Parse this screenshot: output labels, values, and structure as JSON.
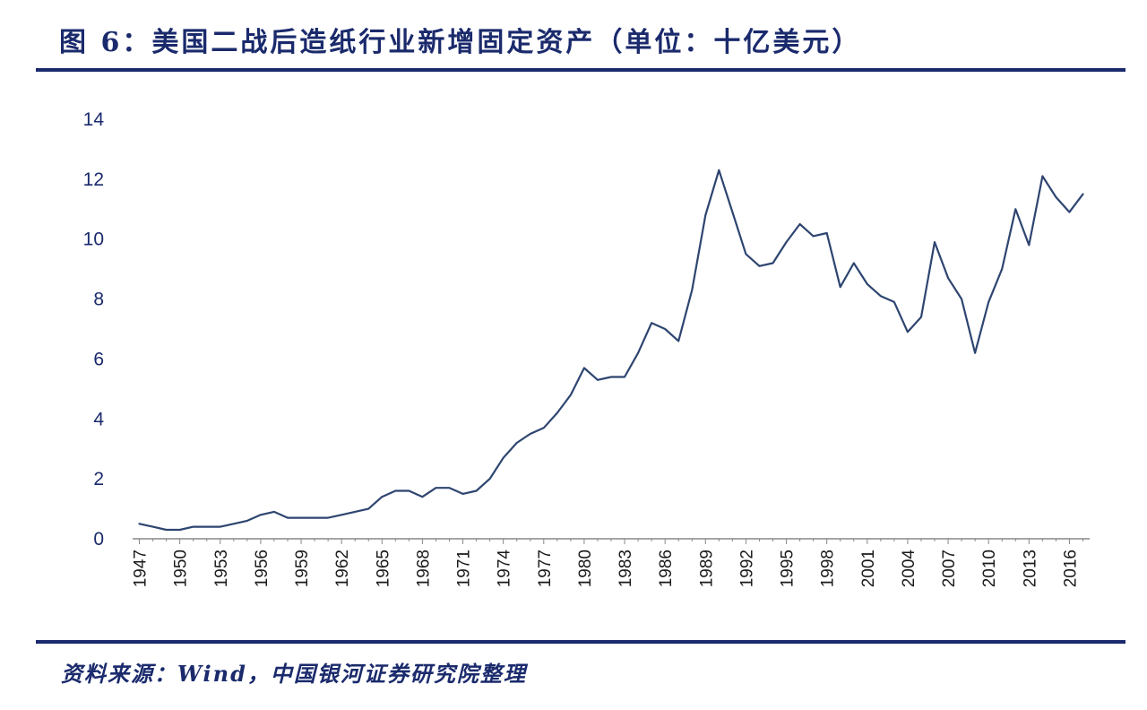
{
  "header": {
    "title": "图 6：美国二战后造纸行业新增固定资产（单位：十亿美元）"
  },
  "footer": {
    "source": "资料来源：Wind，中国银河证券研究院整理"
  },
  "colors": {
    "accent": "#1a2a6c",
    "line": "#2e4570"
  },
  "chart_data": {
    "type": "line",
    "title": "图 6：美国二战后造纸行业新增固定资产（单位：十亿美元）",
    "xlabel": "",
    "ylabel": "",
    "ylim": [
      0,
      14
    ],
    "yticks": [
      "0",
      "2",
      "4",
      "6",
      "8",
      "10",
      "12",
      "14"
    ],
    "xticks": [
      "1947",
      "1950",
      "1953",
      "1956",
      "1959",
      "1962",
      "1965",
      "1968",
      "1971",
      "1974",
      "1977",
      "1980",
      "1983",
      "1986",
      "1989",
      "1992",
      "1995",
      "1998",
      "2001",
      "2004",
      "2007",
      "2010",
      "2013",
      "2016"
    ],
    "grid": false,
    "legend": "none",
    "series": [
      {
        "x": [
          1947,
          1948,
          1949,
          1950,
          1951,
          1952,
          1953,
          1954,
          1955,
          1956,
          1957,
          1958,
          1959,
          1960,
          1961,
          1962,
          1963,
          1964,
          1965,
          1966,
          1967,
          1968,
          1969,
          1970,
          1971,
          1972,
          1973,
          1974,
          1975,
          1976,
          1977,
          1978,
          1979,
          1980,
          1981,
          1982,
          1983,
          1984,
          1985,
          1986,
          1987,
          1988,
          1989,
          1990,
          1991,
          1992,
          1993,
          1994,
          1995,
          1996,
          1997,
          1998,
          1999,
          2000,
          2001,
          2002,
          2003,
          2004,
          2005,
          2006,
          2007,
          2008,
          2009,
          2010,
          2011,
          2012,
          2013,
          2014,
          2015,
          2016,
          2017
        ],
        "values": [
          0.5,
          0.4,
          0.3,
          0.3,
          0.4,
          0.4,
          0.4,
          0.5,
          0.6,
          0.8,
          0.9,
          0.7,
          0.7,
          0.7,
          0.7,
          0.8,
          0.9,
          1.0,
          1.4,
          1.6,
          1.6,
          1.4,
          1.7,
          1.7,
          1.5,
          1.6,
          2.0,
          2.7,
          3.2,
          3.5,
          3.7,
          4.2,
          4.8,
          5.7,
          5.3,
          5.4,
          5.4,
          6.2,
          7.2,
          7.0,
          6.6,
          8.3,
          10.8,
          12.3,
          10.9,
          9.5,
          9.1,
          9.2,
          9.9,
          10.5,
          10.1,
          10.2,
          8.4,
          9.2,
          8.5,
          8.1,
          7.9,
          6.9,
          7.4,
          9.9,
          8.7,
          8.0,
          6.2,
          7.9,
          9.0,
          11.0,
          9.8,
          12.1,
          11.4,
          10.9,
          11.5
        ]
      }
    ]
  }
}
